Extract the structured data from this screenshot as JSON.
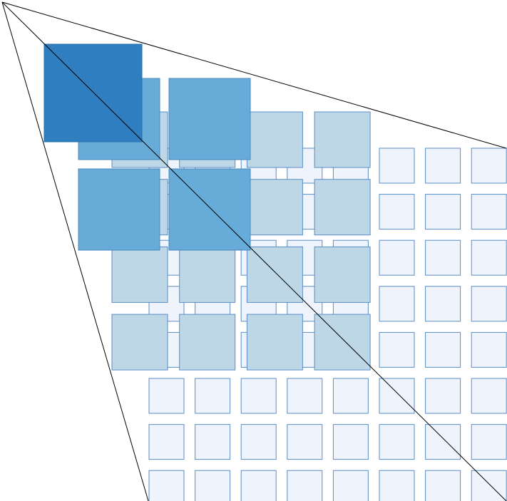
{
  "diagram": {
    "description_free": true,
    "colors": {
      "background": "#ffffff",
      "line": "#000000",
      "level1_fill": "#EEF3FC",
      "level1_stroke": "#5A8EC6",
      "level2_fill": "#BED7E6",
      "level2_stroke": "#5A8EC6",
      "level3_fill": "#67ACD8",
      "level3_stroke": "#4C88BE",
      "level4_fill": "#2F7FC0",
      "level4_stroke": "#2A6FAA"
    },
    "grid_levels": [
      {
        "level": 1,
        "rows": 8,
        "cols": 8
      },
      {
        "level": 2,
        "rows": 4,
        "cols": 4
      },
      {
        "level": 3,
        "rows": 2,
        "cols": 2
      },
      {
        "level": 4,
        "rows": 1,
        "cols": 1
      }
    ]
  }
}
